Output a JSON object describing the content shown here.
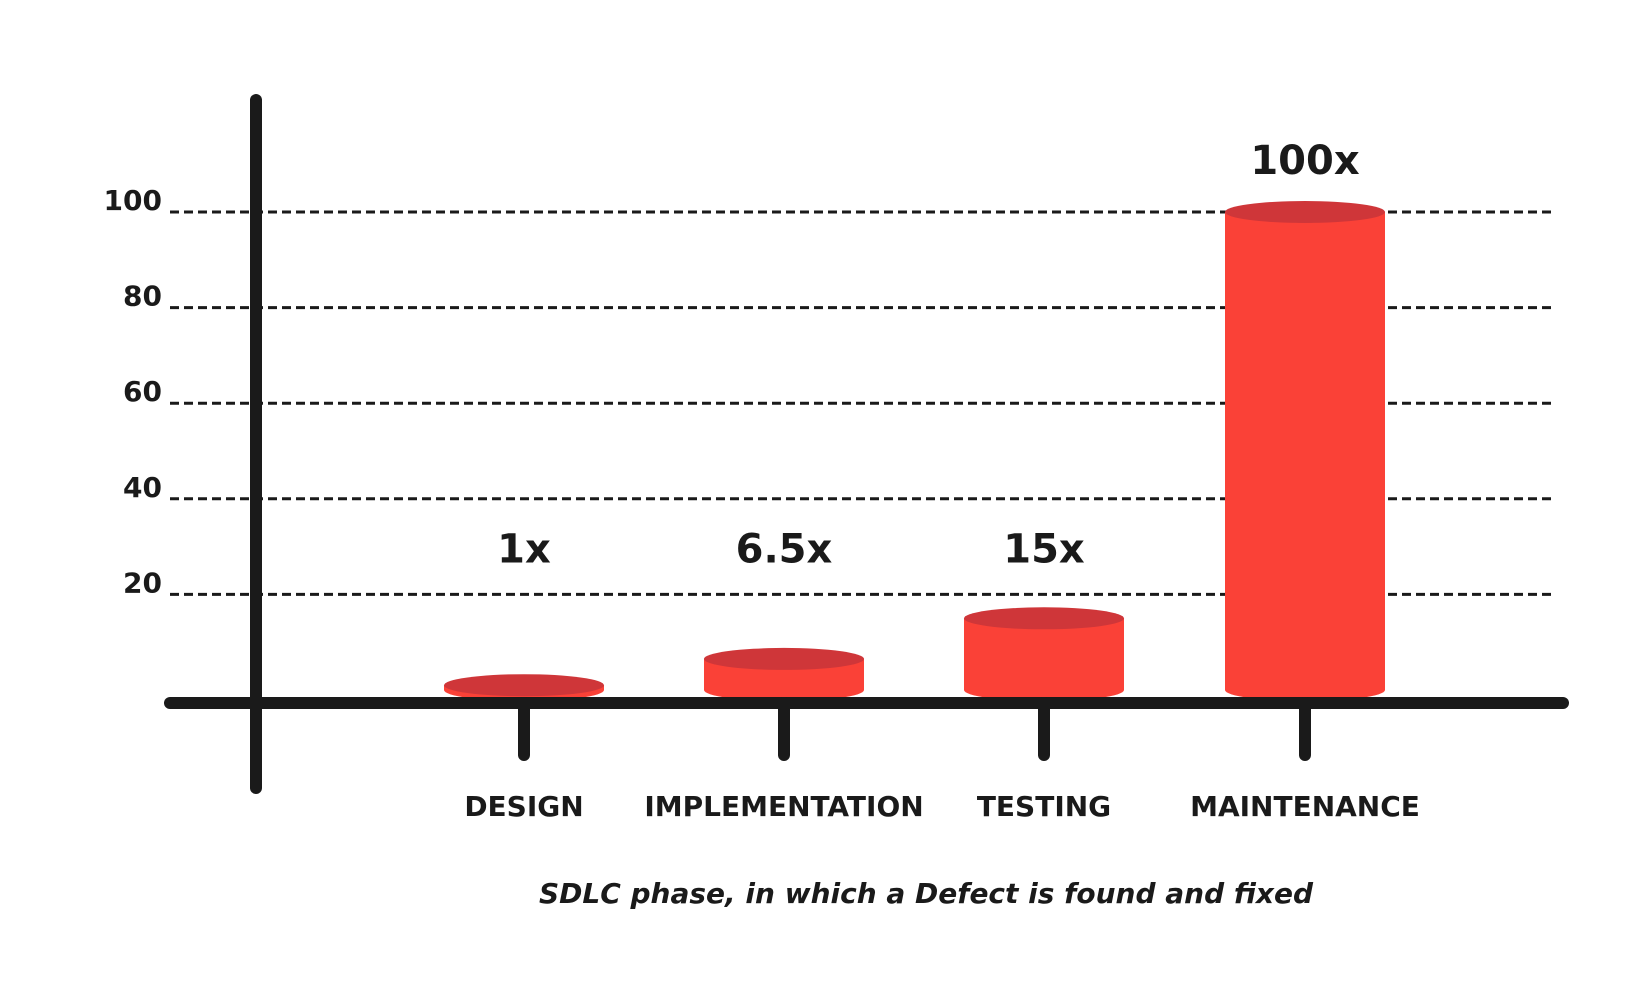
{
  "chart_data": {
    "type": "bar",
    "categories": [
      "DESIGN",
      "IMPLEMENTATION",
      "TESTING",
      "MAINTENANCE"
    ],
    "values": [
      1,
      6.5,
      15,
      100
    ],
    "data_labels": [
      "1x",
      "6.5x",
      "15x",
      "100x"
    ],
    "title": "",
    "xlabel": "SDLC phase, in which a Defect is found and fixed",
    "ylabel": "",
    "ylim": [
      0,
      100
    ],
    "yticks": [
      20,
      40,
      60,
      80,
      100
    ],
    "grid": "dashed horizontal",
    "bar_style": "3d cylinder"
  },
  "colors": {
    "bar_body": "#fa4137",
    "bar_top": "#cf3639",
    "axis": "#1a1a1a",
    "text": "#1a1a1a",
    "background": "#ffffff"
  }
}
